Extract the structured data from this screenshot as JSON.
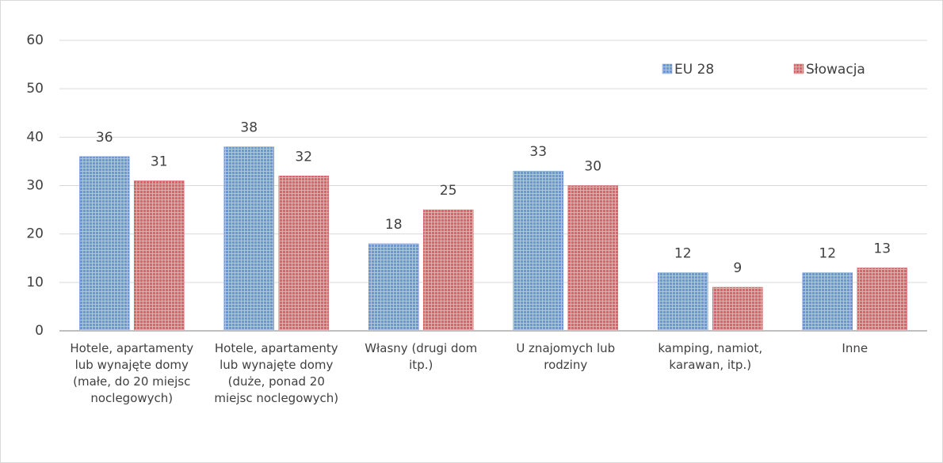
{
  "chart_data": {
    "type": "bar",
    "categories": [
      "Hotele, apartamenty lub wynajęte domy (małe, do 20 miejsc noclegowych)",
      "Hotele, apartamenty lub wynajęte domy (duże, ponad 20 miejsc noclegowych)",
      "Własny (drugi dom itp.)",
      "U znajomych lub rodziny",
      "kamping, namiot, karawan, itp.)",
      "Inne"
    ],
    "series": [
      {
        "name": "EU 28",
        "color": "#6b96d8",
        "values": [
          36,
          38,
          18,
          33,
          12,
          12
        ]
      },
      {
        "name": "Słowacja",
        "color": "#d9646a",
        "values": [
          31,
          32,
          25,
          30,
          9,
          13
        ]
      }
    ],
    "ylim": [
      0,
      60
    ],
    "yticks": [
      0,
      10,
      20,
      30,
      40,
      50,
      60
    ],
    "grid": true,
    "legend": "top-right"
  }
}
